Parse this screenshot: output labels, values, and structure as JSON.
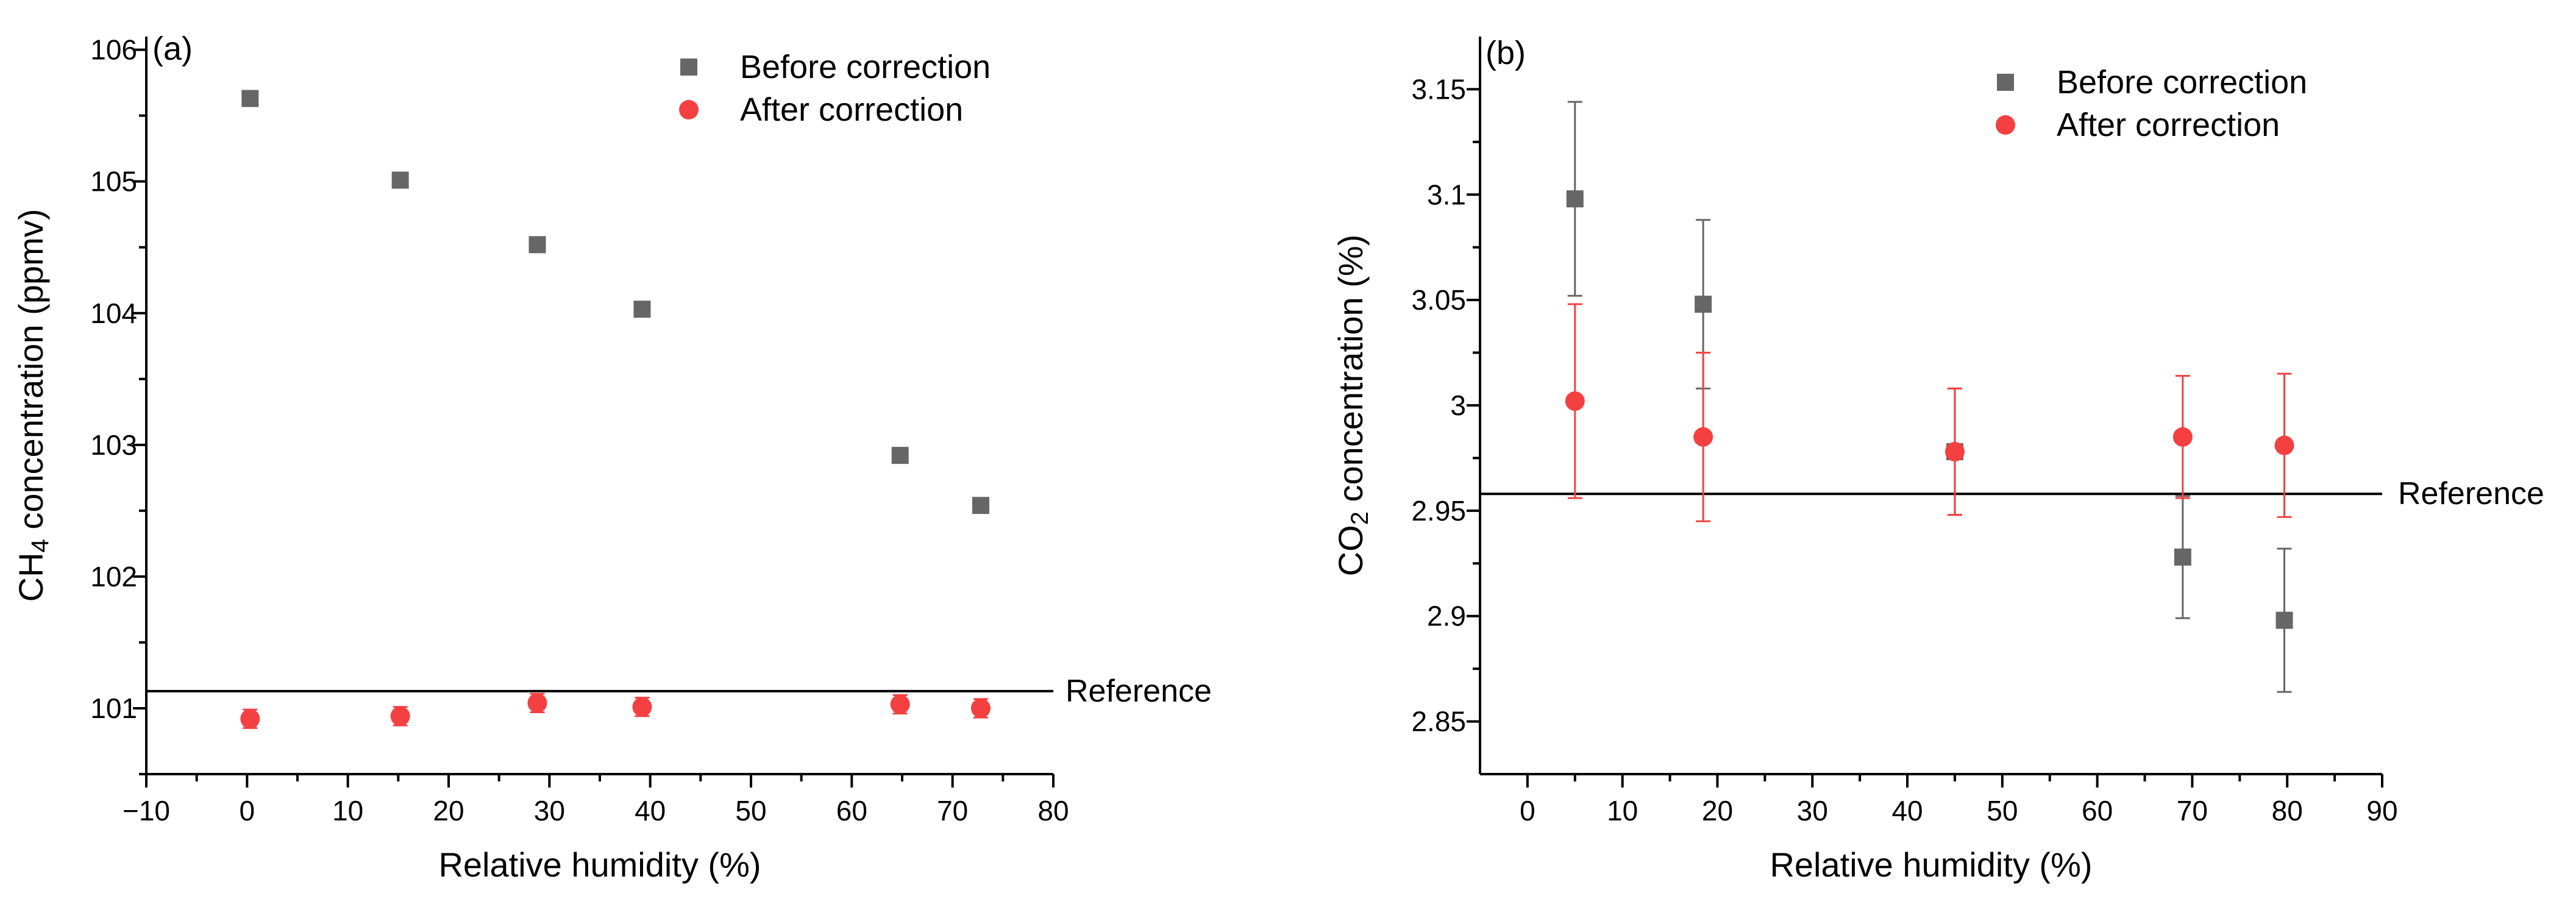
{
  "chart_data": [
    {
      "type": "scatter",
      "panel_label": "(a)",
      "xlabel": "Relative humidity (%)",
      "ylabel_main": "CH",
      "ylabel_sub": "4",
      "ylabel_rest": " concentration (ppmv)",
      "xlim": [
        -10,
        80
      ],
      "ylim": [
        100.5,
        106.1
      ],
      "xticks": [
        -10,
        0,
        10,
        20,
        30,
        40,
        50,
        60,
        70,
        80
      ],
      "xtick_labels": [
        "−10",
        "0",
        "10",
        "20",
        "30",
        "40",
        "50",
        "60",
        "70",
        "80"
      ],
      "yticks": [
        101,
        102,
        103,
        104,
        105,
        106
      ],
      "ytick_labels": [
        "101",
        "102",
        "103",
        "104",
        "105",
        "106"
      ],
      "legend_position": "top-right",
      "reference": {
        "label": "Reference",
        "value": 101.13
      },
      "series": [
        {
          "name": "Before correction",
          "marker": "square",
          "color": "#666666",
          "x": [
            0.3,
            15.2,
            28.8,
            39.2,
            64.8,
            72.8
          ],
          "y": [
            105.63,
            105.01,
            104.52,
            104.03,
            102.92,
            102.54
          ],
          "err": [
            0,
            0,
            0,
            0,
            0,
            0
          ]
        },
        {
          "name": "After correction",
          "marker": "circle",
          "color": "#f44040",
          "x": [
            0.3,
            15.2,
            28.8,
            39.2,
            64.8,
            72.8
          ],
          "y": [
            100.92,
            100.94,
            101.04,
            101.01,
            101.03,
            101.0
          ],
          "err": [
            0.07,
            0.07,
            0.07,
            0.07,
            0.07,
            0.07
          ]
        }
      ]
    },
    {
      "type": "scatter",
      "panel_label": "(b)",
      "xlabel": "Relative humidity (%)",
      "ylabel_main": "CO",
      "ylabel_sub": "2",
      "ylabel_rest": " concentration (%)",
      "xlim": [
        -5,
        90
      ],
      "ylim": [
        2.825,
        3.175
      ],
      "xticks": [
        0,
        10,
        20,
        30,
        40,
        50,
        60,
        70,
        80,
        90
      ],
      "xtick_labels": [
        "0",
        "10",
        "20",
        "30",
        "40",
        "50",
        "60",
        "70",
        "80",
        "90"
      ],
      "yticks": [
        2.85,
        2.9,
        2.95,
        3.0,
        3.05,
        3.1,
        3.15
      ],
      "ytick_labels": [
        "2.85",
        "2.9",
        "2.95",
        "3",
        "3.05",
        "3.1",
        "3.15"
      ],
      "legend_position": "top-right",
      "reference": {
        "label": "Reference",
        "value": 2.958
      },
      "series": [
        {
          "name": "Before correction",
          "marker": "square",
          "color": "#666666",
          "x": [
            5,
            18.5,
            45,
            69,
            79.7
          ],
          "y": [
            3.098,
            3.048,
            2.978,
            2.928,
            2.898
          ],
          "err": [
            0.046,
            0.04,
            0.03,
            0.029,
            0.034
          ]
        },
        {
          "name": "After correction",
          "marker": "circle",
          "color": "#f44040",
          "x": [
            5,
            18.5,
            45,
            69,
            79.7
          ],
          "y": [
            3.002,
            2.985,
            2.978,
            2.985,
            2.981
          ],
          "err": [
            0.046,
            0.04,
            0.03,
            0.029,
            0.034
          ]
        }
      ]
    }
  ]
}
